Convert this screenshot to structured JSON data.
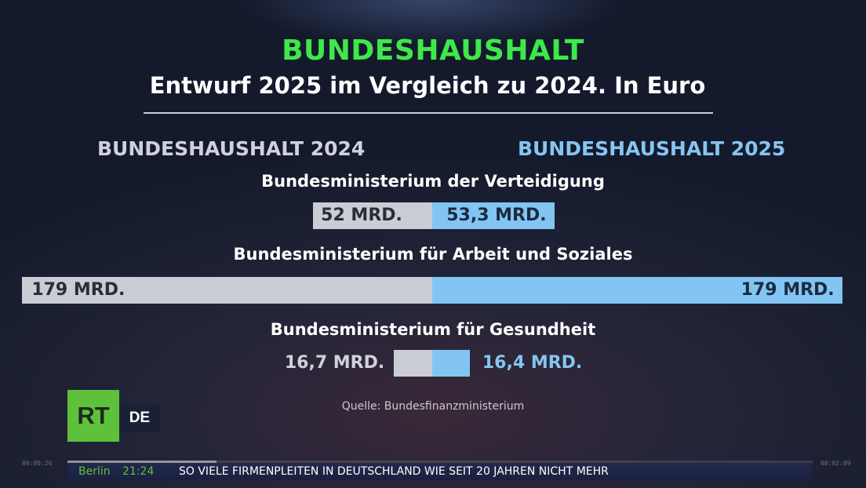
{
  "header": {
    "title": "BUNDESHAUSHALT",
    "subtitle": "Entwurf 2025 im Vergleich zu 2024. In Euro"
  },
  "chart_data": {
    "type": "bar",
    "orientation": "butterfly",
    "unit": "MRD.",
    "series": [
      {
        "name": "BUNDESHAUSHALT 2024",
        "values": [
          52,
          179,
          16.7
        ],
        "labels": [
          "52 MRD.",
          "179 MRD.",
          "16,7 MRD."
        ]
      },
      {
        "name": "BUNDESHAUSHALT 2025",
        "values": [
          53.3,
          179,
          16.4
        ],
        "labels": [
          "53,3 MRD.",
          "179 MRD.",
          "16,4 MRD."
        ]
      }
    ],
    "categories": [
      "Bundesministerium der Verteidigung",
      "Bundesministerium für Arbeit und Soziales",
      "Bundesministerium für Gesundheit"
    ],
    "colors": {
      "left": "#cbcdd4",
      "right": "#82c5f2"
    }
  },
  "source": "Quelle: Bundesfinanzministerium",
  "logo": {
    "primary": "RT",
    "secondary": "DE"
  },
  "ticker": {
    "city": "Berlin",
    "time": "21:24",
    "headline": "SO VIELE FIRMENPLEITEN IN DEUTSCHLAND WIE SEIT 20 JAHREN NICHT MEHR"
  },
  "player": {
    "elapsed": "00:00:26",
    "duration": "00:02:09",
    "progress": 0.2
  }
}
